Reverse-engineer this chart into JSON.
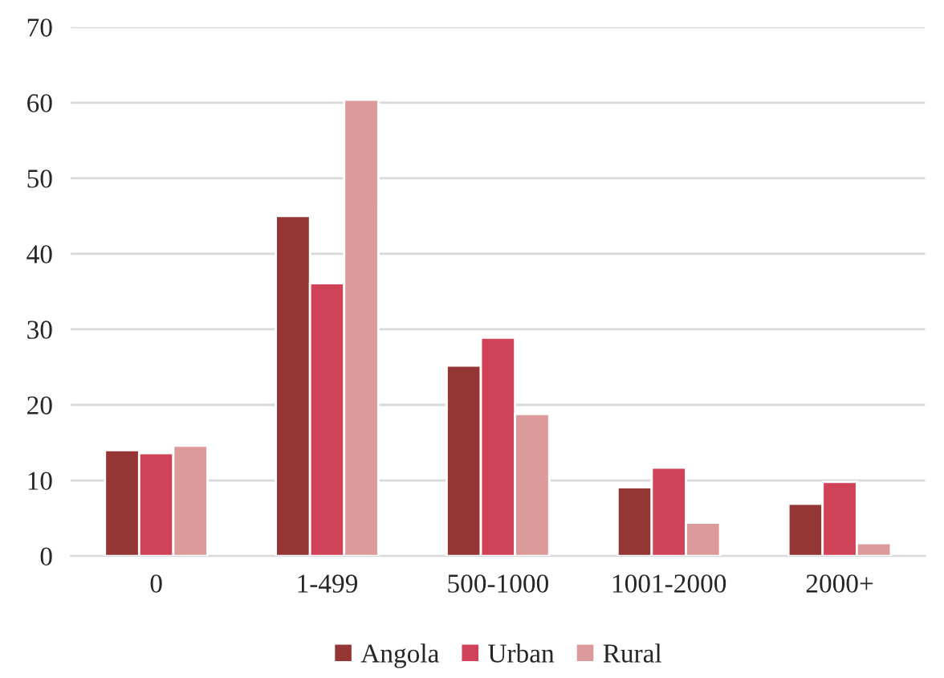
{
  "chart_data": {
    "type": "bar",
    "categories": [
      "0",
      "1-499",
      "500-1000",
      "1001-2000",
      "2000+"
    ],
    "series": [
      {
        "name": "Angola",
        "color": "#943634",
        "values": [
          14.0,
          45.0,
          25.2,
          9.1,
          6.9
        ]
      },
      {
        "name": "Urban",
        "color": "#d04257",
        "values": [
          13.6,
          36.1,
          28.9,
          11.7,
          9.8
        ]
      },
      {
        "name": "Rural",
        "color": "#dc9a9b",
        "values": [
          14.6,
          60.4,
          18.8,
          4.4,
          1.7
        ]
      }
    ],
    "ylim": [
      0,
      70
    ],
    "yticks": [
      0,
      10,
      20,
      30,
      40,
      50,
      60,
      70
    ],
    "grid": "y",
    "legend": "bottom"
  }
}
